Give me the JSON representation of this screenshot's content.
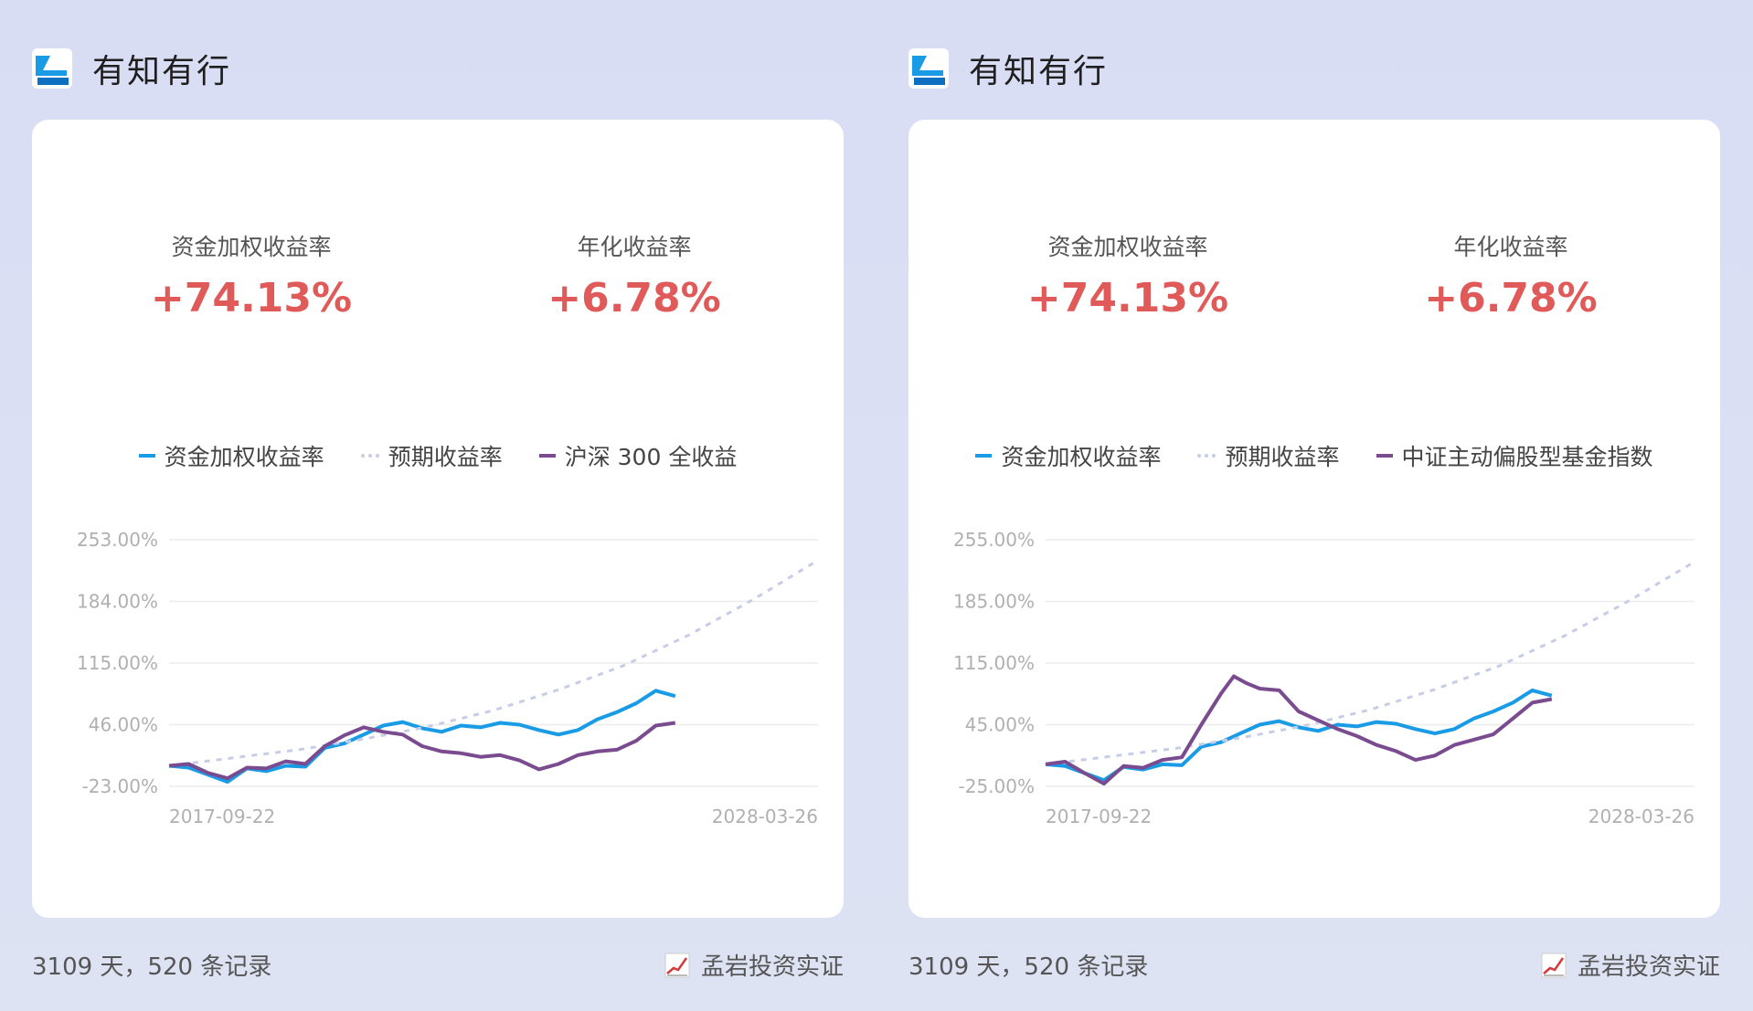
{
  "brand_name": "有知有行",
  "colors": {
    "accent_red": "#e05a5a",
    "series_blue": "#1a9be6",
    "series_expected": "#c7cde6",
    "series_purple": "#7a4b8f"
  },
  "panels": [
    {
      "stat1_label": "资金加权收益率",
      "stat1_value": "+74.13%",
      "stat2_label": "年化收益率",
      "stat2_value": "+6.78%",
      "footer_left": "3109 天，520 条记录",
      "footer_right": "孟岩投资实证"
    },
    {
      "stat1_label": "资金加权收益率",
      "stat1_value": "+74.13%",
      "stat2_label": "年化收益率",
      "stat2_value": "+6.78%",
      "footer_left": "3109 天，520 条记录",
      "footer_right": "孟岩投资实证"
    }
  ],
  "chart_data": [
    {
      "type": "line",
      "x_start": "2017-09-22",
      "x_end": "2028-03-26",
      "y_ticks": [
        "253.00%",
        "184.00%",
        "115.00%",
        "46.00%",
        "-23.00%"
      ],
      "ylim": [
        -23,
        253
      ],
      "grid": true,
      "legend_position": "top-center",
      "series": [
        {
          "name": "资金加权收益率",
          "style": "solid",
          "color": "#1a9be6",
          "points": [
            [
              0,
              0
            ],
            [
              0.03,
              -2
            ],
            [
              0.06,
              -10
            ],
            [
              0.09,
              -18
            ],
            [
              0.12,
              -3
            ],
            [
              0.15,
              -6
            ],
            [
              0.18,
              0
            ],
            [
              0.21,
              -1
            ],
            [
              0.24,
              20
            ],
            [
              0.27,
              25
            ],
            [
              0.3,
              35
            ],
            [
              0.33,
              45
            ],
            [
              0.36,
              49
            ],
            [
              0.39,
              42
            ],
            [
              0.42,
              38
            ],
            [
              0.45,
              45
            ],
            [
              0.48,
              43
            ],
            [
              0.51,
              48
            ],
            [
              0.54,
              46
            ],
            [
              0.57,
              40
            ],
            [
              0.6,
              35
            ],
            [
              0.63,
              40
            ],
            [
              0.66,
              52
            ],
            [
              0.69,
              60
            ],
            [
              0.72,
              70
            ],
            [
              0.75,
              84
            ],
            [
              0.78,
              78
            ]
          ]
        },
        {
          "name": "预期收益率",
          "style": "dotted",
          "color": "#c7cde6",
          "points": [
            [
              0,
              0
            ],
            [
              0.1,
              9
            ],
            [
              0.2,
              18
            ],
            [
              0.3,
              30
            ],
            [
              0.4,
              44
            ],
            [
              0.5,
              62
            ],
            [
              0.6,
              85
            ],
            [
              0.7,
              112
            ],
            [
              0.8,
              146
            ],
            [
              0.9,
              186
            ],
            [
              1.0,
              230
            ]
          ]
        },
        {
          "name": "沪深 300 全收益",
          "style": "solid",
          "color": "#7a4b8f",
          "points": [
            [
              0,
              0
            ],
            [
              0.03,
              2
            ],
            [
              0.06,
              -8
            ],
            [
              0.09,
              -14
            ],
            [
              0.12,
              -2
            ],
            [
              0.15,
              -3
            ],
            [
              0.18,
              5
            ],
            [
              0.21,
              2
            ],
            [
              0.24,
              22
            ],
            [
              0.27,
              34
            ],
            [
              0.3,
              43
            ],
            [
              0.33,
              38
            ],
            [
              0.36,
              35
            ],
            [
              0.39,
              22
            ],
            [
              0.42,
              16
            ],
            [
              0.45,
              14
            ],
            [
              0.48,
              10
            ],
            [
              0.51,
              12
            ],
            [
              0.54,
              6
            ],
            [
              0.57,
              -4
            ],
            [
              0.6,
              2
            ],
            [
              0.63,
              12
            ],
            [
              0.66,
              16
            ],
            [
              0.69,
              18
            ],
            [
              0.72,
              28
            ],
            [
              0.75,
              45
            ],
            [
              0.78,
              48
            ]
          ]
        }
      ]
    },
    {
      "type": "line",
      "x_start": "2017-09-22",
      "x_end": "2028-03-26",
      "y_ticks": [
        "255.00%",
        "185.00%",
        "115.00%",
        "45.00%",
        "-25.00%"
      ],
      "ylim": [
        -25,
        255
      ],
      "grid": true,
      "legend_position": "top-center",
      "series": [
        {
          "name": "资金加权收益率",
          "style": "solid",
          "color": "#1a9be6",
          "points": [
            [
              0,
              0
            ],
            [
              0.03,
              -2
            ],
            [
              0.06,
              -10
            ],
            [
              0.09,
              -18
            ],
            [
              0.12,
              -3
            ],
            [
              0.15,
              -6
            ],
            [
              0.18,
              0
            ],
            [
              0.21,
              -1
            ],
            [
              0.24,
              20
            ],
            [
              0.27,
              25
            ],
            [
              0.3,
              35
            ],
            [
              0.33,
              45
            ],
            [
              0.36,
              49
            ],
            [
              0.39,
              42
            ],
            [
              0.42,
              38
            ],
            [
              0.45,
              45
            ],
            [
              0.48,
              43
            ],
            [
              0.51,
              48
            ],
            [
              0.54,
              46
            ],
            [
              0.57,
              40
            ],
            [
              0.6,
              35
            ],
            [
              0.63,
              40
            ],
            [
              0.66,
              52
            ],
            [
              0.69,
              60
            ],
            [
              0.72,
              70
            ],
            [
              0.75,
              84
            ],
            [
              0.78,
              78
            ]
          ]
        },
        {
          "name": "预期收益率",
          "style": "dotted",
          "color": "#c7cde6",
          "points": [
            [
              0,
              0
            ],
            [
              0.1,
              9
            ],
            [
              0.2,
              18
            ],
            [
              0.3,
              30
            ],
            [
              0.4,
              44
            ],
            [
              0.5,
              62
            ],
            [
              0.6,
              85
            ],
            [
              0.7,
              112
            ],
            [
              0.8,
              146
            ],
            [
              0.9,
              186
            ],
            [
              1.0,
              230
            ]
          ]
        },
        {
          "name": "中证主动偏股型基金指数",
          "style": "solid",
          "color": "#7a4b8f",
          "points": [
            [
              0,
              0
            ],
            [
              0.03,
              3
            ],
            [
              0.06,
              -10
            ],
            [
              0.09,
              -22
            ],
            [
              0.12,
              -2
            ],
            [
              0.15,
              -4
            ],
            [
              0.18,
              5
            ],
            [
              0.21,
              8
            ],
            [
              0.24,
              45
            ],
            [
              0.27,
              80
            ],
            [
              0.29,
              100
            ],
            [
              0.31,
              92
            ],
            [
              0.33,
              86
            ],
            [
              0.36,
              84
            ],
            [
              0.39,
              60
            ],
            [
              0.42,
              50
            ],
            [
              0.45,
              40
            ],
            [
              0.48,
              32
            ],
            [
              0.51,
              22
            ],
            [
              0.54,
              15
            ],
            [
              0.57,
              5
            ],
            [
              0.6,
              10
            ],
            [
              0.63,
              22
            ],
            [
              0.66,
              28
            ],
            [
              0.69,
              34
            ],
            [
              0.72,
              52
            ],
            [
              0.75,
              70
            ],
            [
              0.78,
              74
            ]
          ]
        }
      ]
    }
  ]
}
